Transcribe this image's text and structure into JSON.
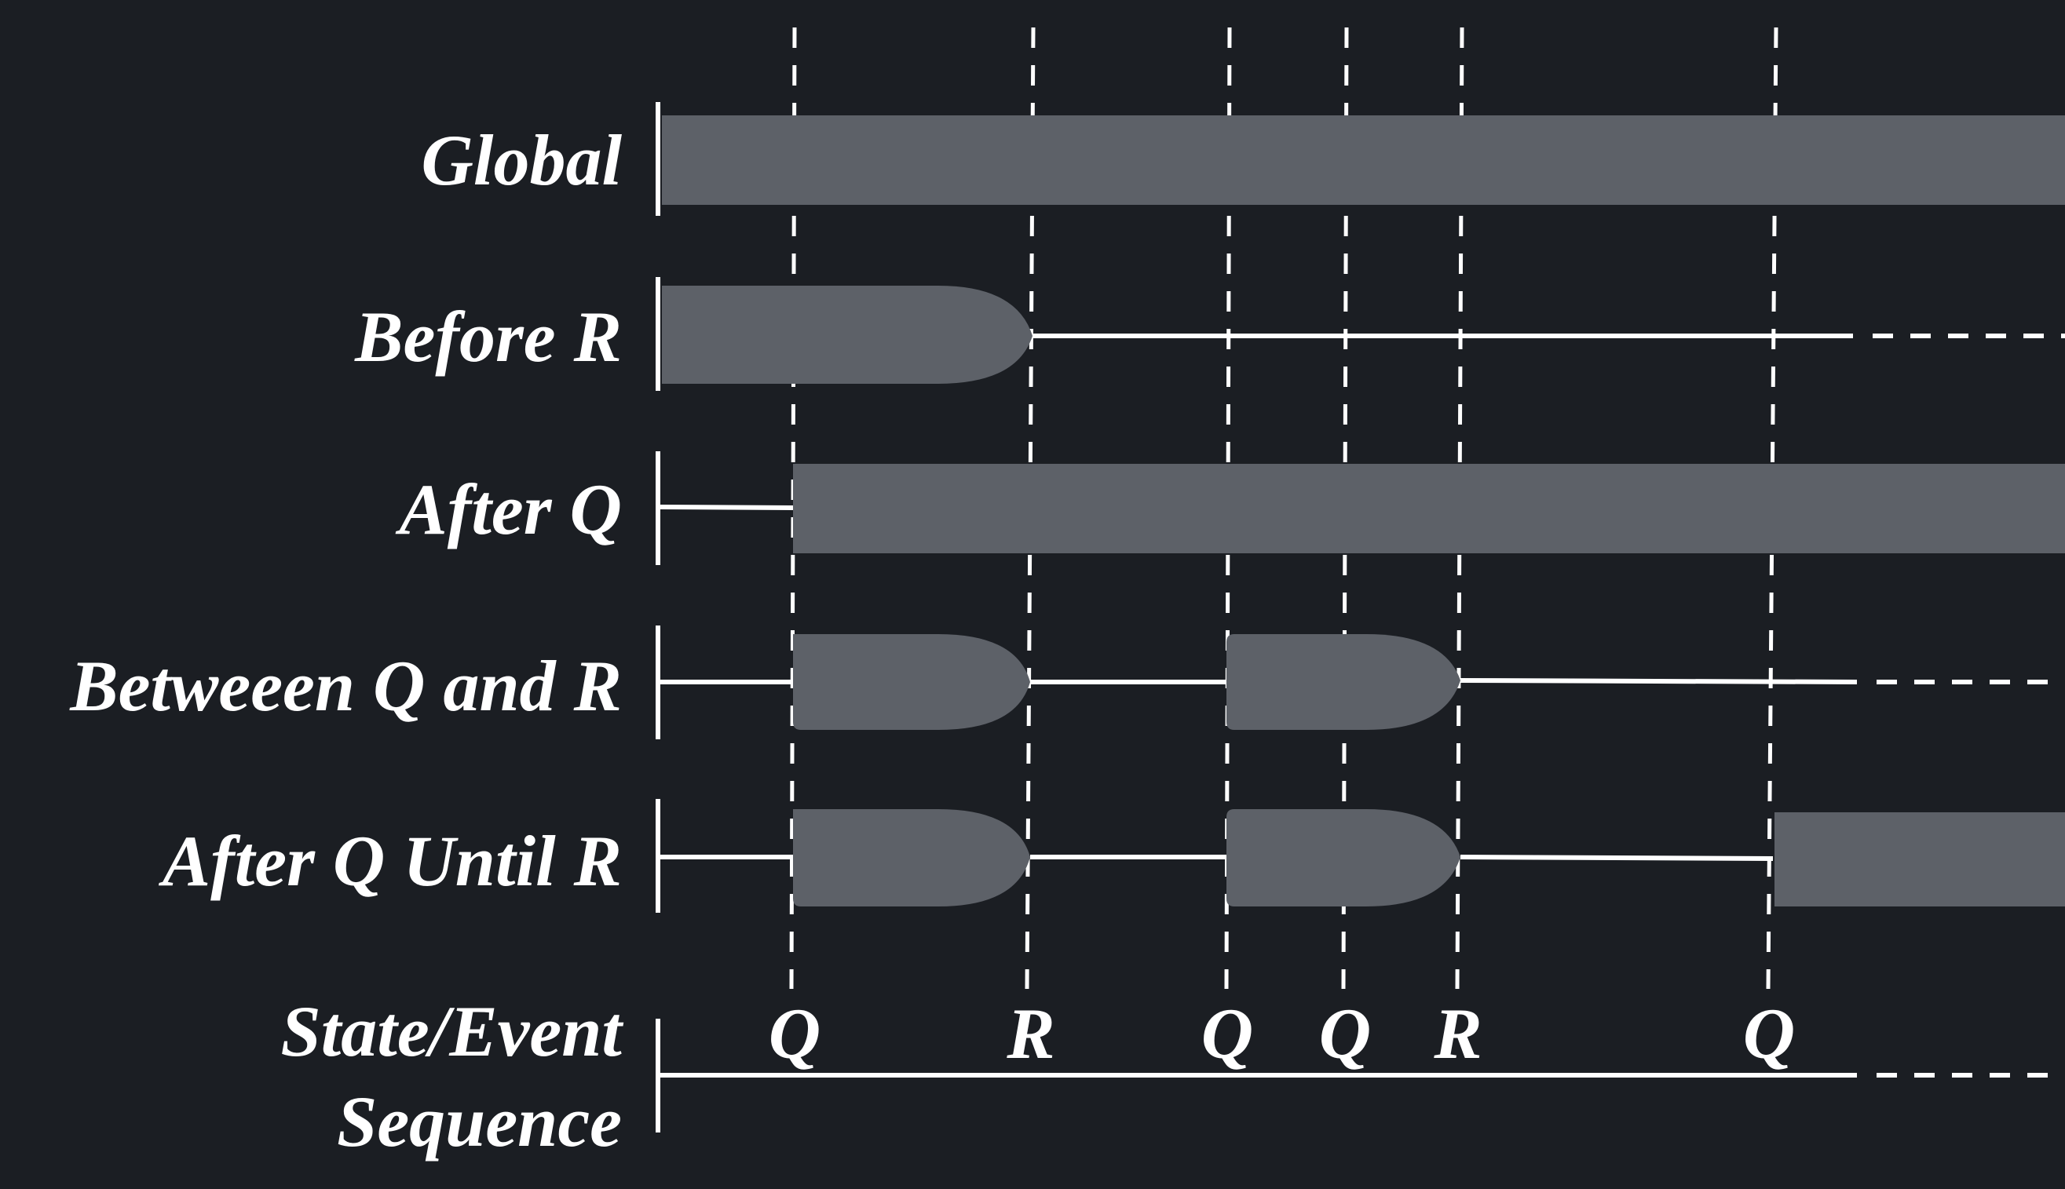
{
  "colors": {
    "background": "#1b1e23",
    "active_bar": "#5d6168",
    "line": "#ffffff"
  },
  "rows": [
    {
      "key": "global",
      "label": "Global"
    },
    {
      "key": "before-r",
      "label": "Before R"
    },
    {
      "key": "after-q",
      "label": "After Q"
    },
    {
      "key": "between-q-and-r",
      "label": "Betweeen Q and R"
    },
    {
      "key": "after-q-until-r",
      "label": "After Q Until R"
    }
  ],
  "sequence": {
    "label_line1": "State/Event",
    "label_line2": "Sequence",
    "events": [
      "Q",
      "R",
      "Q",
      "Q",
      "R",
      "Q"
    ]
  }
}
